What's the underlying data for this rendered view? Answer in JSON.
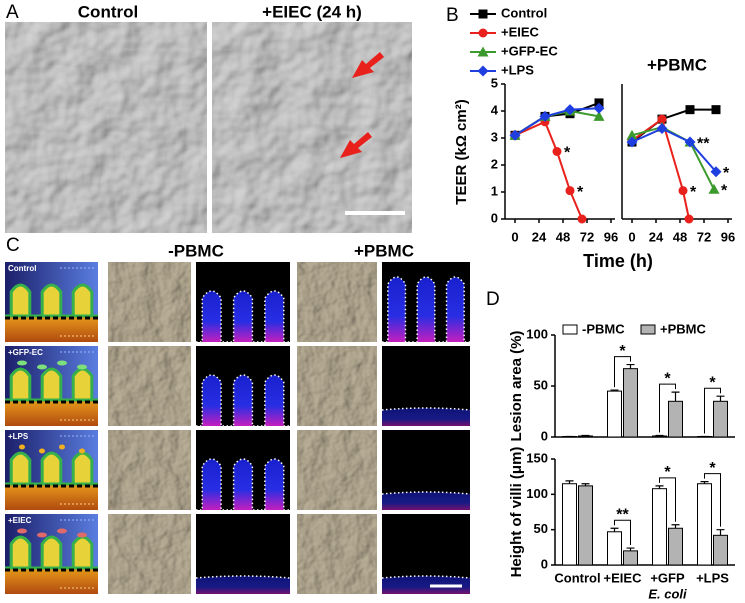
{
  "panel_labels": [
    "A",
    "B",
    "C",
    "D"
  ],
  "panel_a": {
    "labels": [
      "Control",
      "+EIEC (24 h)"
    ]
  },
  "panel_c": {
    "column_labels": [
      "-PBMC",
      "+PBMC"
    ],
    "row_labels": [
      "Control",
      "+GFP-EC",
      "+LPS",
      "+EIEC"
    ]
  },
  "chart_data": [
    {
      "type": "line",
      "ylabel": "TEER (kΩ cm²)",
      "xlabel": "Time (h)",
      "xlim": [
        -10,
        100
      ],
      "xticks": [
        0,
        24,
        48,
        72,
        96
      ],
      "ylim": [
        0,
        5
      ],
      "yticks": [
        0,
        1,
        2,
        3,
        4,
        5
      ],
      "series": [
        {
          "name": "Control",
          "color": "#000000",
          "marker": "square",
          "x": [
            0,
            30,
            55,
            84
          ],
          "values": [
            3.1,
            3.8,
            3.9,
            4.3
          ]
        },
        {
          "name": "+EIEC",
          "color": "#e8211c",
          "marker": "circle",
          "x": [
            0,
            30,
            42,
            55,
            67
          ],
          "values": [
            3.1,
            3.6,
            2.5,
            1.05,
            0
          ],
          "significance": [
            null,
            null,
            "*",
            "*",
            null
          ]
        },
        {
          "name": "+GFP-EC",
          "color": "#3c9a2c",
          "marker": "triangle",
          "x": [
            0,
            30,
            55,
            84
          ],
          "values": [
            3.1,
            3.8,
            4.0,
            3.8
          ]
        },
        {
          "name": "+LPS",
          "color": "#1f3ee0",
          "marker": "diamond",
          "x": [
            0,
            30,
            55,
            84
          ],
          "values": [
            3.1,
            3.8,
            4.05,
            4.1
          ]
        }
      ]
    },
    {
      "type": "line",
      "title": "+PBMC",
      "xlim": [
        -10,
        100
      ],
      "xticks": [
        0,
        24,
        48,
        72,
        96
      ],
      "ylim": [
        0,
        5
      ],
      "series": [
        {
          "color": "#000000",
          "marker": "square",
          "x": [
            0,
            30,
            58,
            84
          ],
          "values": [
            2.85,
            3.7,
            4.05,
            4.05
          ]
        },
        {
          "color": "#e8211c",
          "marker": "circle",
          "x": [
            0,
            30,
            51,
            57
          ],
          "values": [
            2.9,
            3.7,
            1.05,
            0
          ],
          "significance": [
            null,
            null,
            "*",
            null
          ]
        },
        {
          "color": "#3c9a2c",
          "marker": "triangle",
          "x": [
            0,
            30,
            58,
            82
          ],
          "values": [
            3.1,
            3.4,
            2.85,
            1.1
          ],
          "significance": [
            null,
            null,
            null,
            "*"
          ]
        },
        {
          "color": "#1f3ee0",
          "marker": "diamond",
          "x": [
            0,
            30,
            58,
            84
          ],
          "values": [
            2.85,
            3.35,
            2.85,
            1.75
          ],
          "significance": [
            null,
            null,
            "**",
            "*"
          ]
        }
      ]
    },
    {
      "type": "bar",
      "ylabel": "Lesion area (%)",
      "ylim": [
        0,
        100
      ],
      "yticks": [
        0,
        50,
        100
      ],
      "series": [
        {
          "name": "-PBMC",
          "color": "#ffffff",
          "values": [
            0.5,
            45,
            1,
            0.5
          ],
          "errors": [
            0,
            1,
            0.5,
            0
          ]
        },
        {
          "name": "+PBMC",
          "color": "#b3b3b3",
          "values": [
            1,
            67,
            35,
            35
          ],
          "errors": [
            0.5,
            4,
            9,
            5
          ]
        }
      ],
      "significance": [
        null,
        "*",
        "*",
        "*"
      ]
    },
    {
      "type": "bar",
      "ylabel": "Height of villi (μm)",
      "ylim": [
        0,
        150
      ],
      "yticks": [
        0,
        50,
        100,
        150
      ],
      "categories": [
        "Control",
        "+EIEC",
        "+GFP",
        "+LPS"
      ],
      "category_sublabels": [
        null,
        null,
        "E. coli",
        null
      ],
      "series": [
        {
          "color": "#ffffff",
          "values": [
            115,
            47,
            108,
            115
          ],
          "errors": [
            4,
            5,
            4,
            3
          ]
        },
        {
          "color": "#b3b3b3",
          "values": [
            112,
            20,
            52,
            42
          ],
          "errors": [
            3,
            4,
            5,
            8
          ]
        }
      ],
      "significance": [
        null,
        "**",
        "*",
        "*"
      ]
    }
  ]
}
